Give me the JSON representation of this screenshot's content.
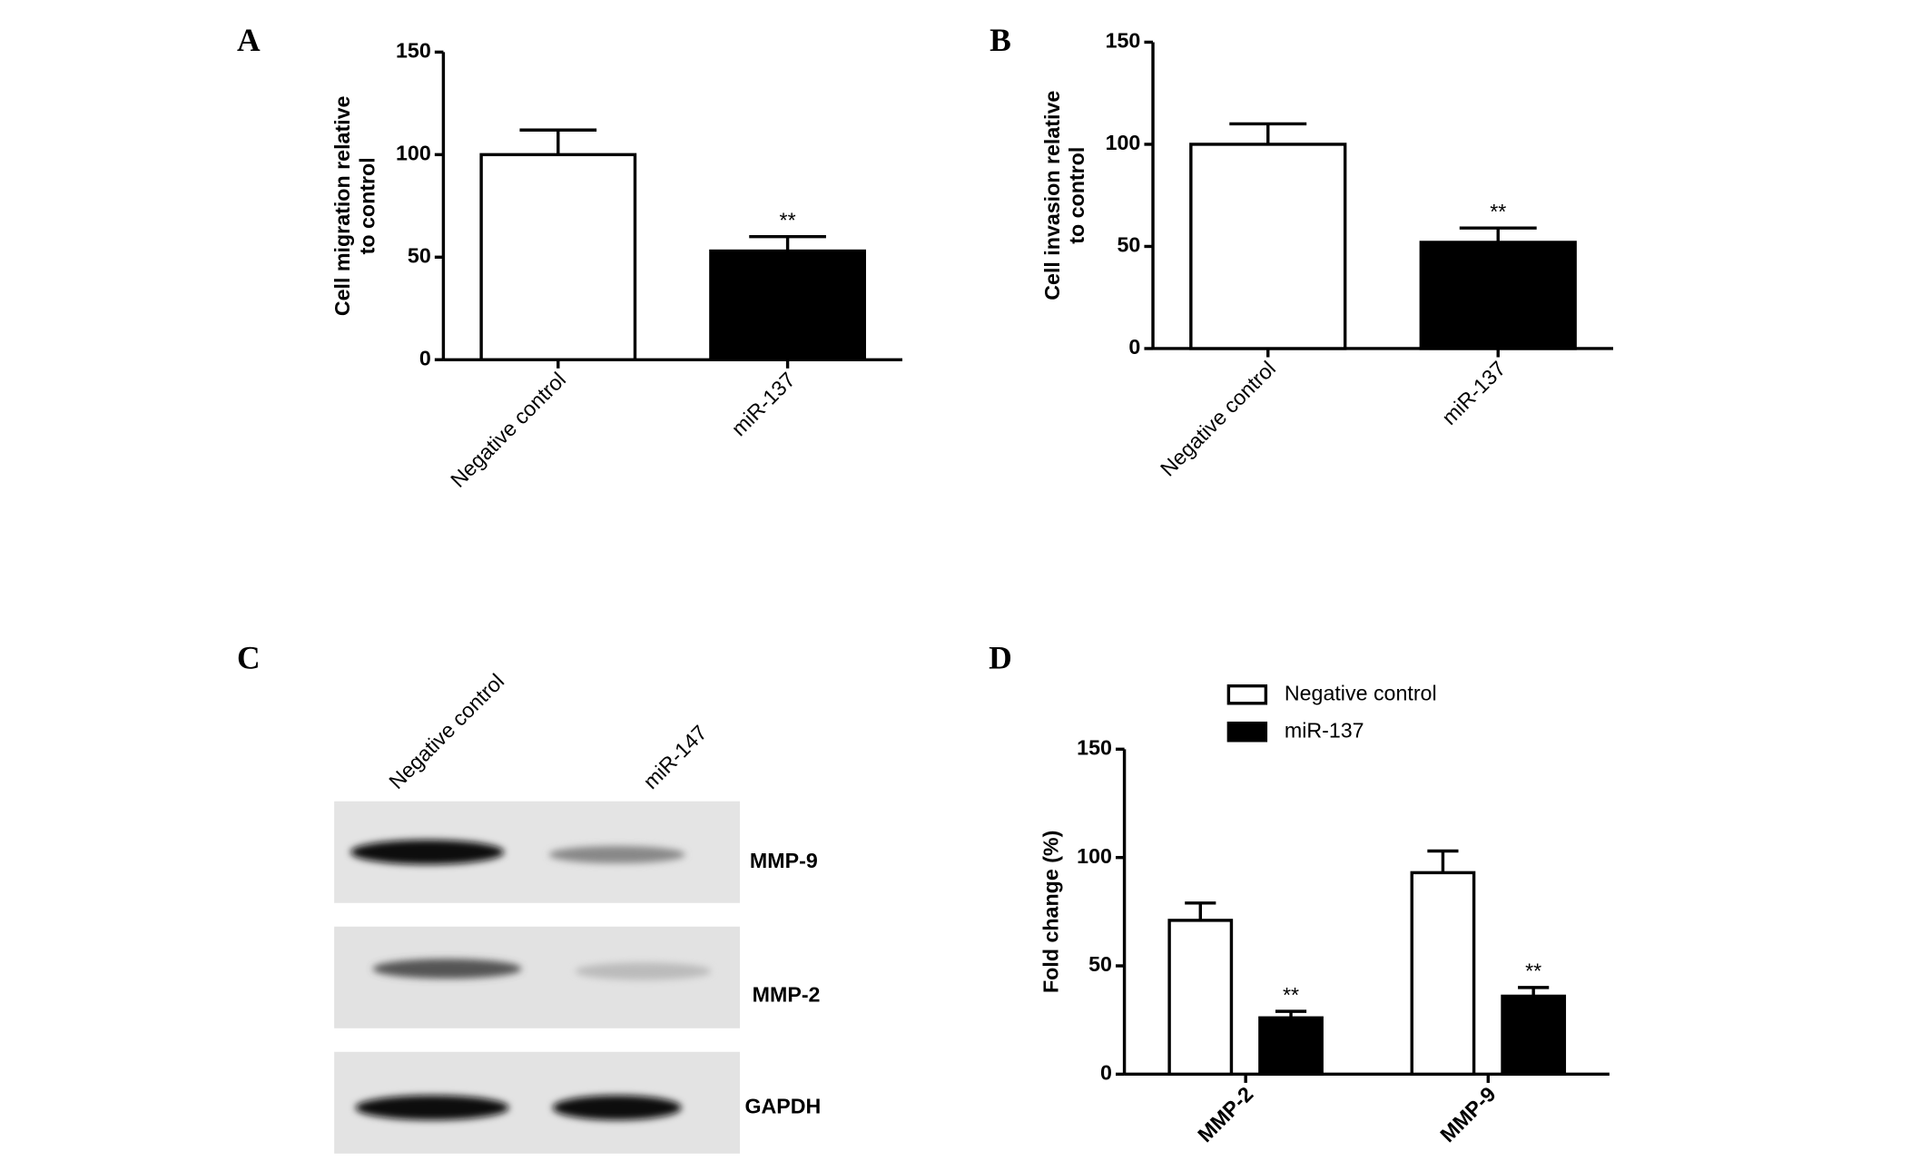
{
  "chart_data": [
    {
      "type": "bar",
      "panel": "A",
      "ylabel": [
        "Cell migration relative",
        "to control"
      ],
      "categories": [
        "Negative control",
        "miR-137"
      ],
      "series": [
        {
          "name": null,
          "colors": [
            "#ffffff",
            "#000000"
          ],
          "values": [
            100,
            53
          ],
          "errors": [
            12,
            7
          ],
          "annotations": [
            null,
            "**"
          ]
        }
      ],
      "ylim": [
        0,
        150
      ],
      "yticks": [
        0,
        50,
        100,
        150
      ]
    },
    {
      "type": "bar",
      "panel": "B",
      "ylabel": [
        "Cell invasion relative",
        "to control"
      ],
      "categories": [
        "Negative control",
        "miR-137"
      ],
      "series": [
        {
          "name": null,
          "colors": [
            "#ffffff",
            "#000000"
          ],
          "values": [
            100,
            52
          ],
          "errors": [
            10,
            7
          ],
          "annotations": [
            null,
            "**"
          ]
        }
      ],
      "ylim": [
        0,
        150
      ],
      "yticks": [
        0,
        50,
        100,
        150
      ]
    },
    {
      "type": "bar",
      "panel": "D",
      "ylabel": [
        "Fold change (%)"
      ],
      "categories": [
        "MMP-2",
        "MMP-9"
      ],
      "series": [
        {
          "name": "Negative control",
          "color": "#ffffff",
          "values": [
            71,
            93
          ],
          "errors": [
            8,
            10
          ],
          "annotations": [
            null,
            null
          ]
        },
        {
          "name": "miR-137",
          "color": "#000000",
          "values": [
            26,
            36
          ],
          "errors": [
            3,
            4
          ],
          "annotations": [
            "**",
            "**"
          ]
        }
      ],
      "ylim": [
        0,
        150
      ],
      "yticks": [
        0,
        50,
        100,
        150
      ],
      "legend": "top"
    }
  ],
  "blot": {
    "panel": "C",
    "lanes": [
      "Negative control",
      "miR-147"
    ],
    "bands": [
      "MMP-9",
      "MMP-2",
      "GAPDH"
    ]
  }
}
